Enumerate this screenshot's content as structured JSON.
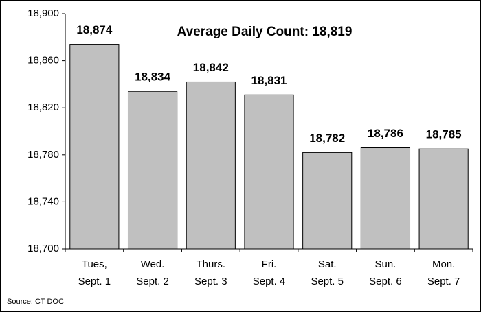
{
  "chart_data": {
    "type": "bar",
    "annotation": "Average Daily Count: 18,819",
    "source": "Source: CT DOC",
    "categories": [
      [
        "Tues,",
        "Sept. 1"
      ],
      [
        "Wed.",
        "Sept. 2"
      ],
      [
        "Thurs.",
        "Sept. 3"
      ],
      [
        "Fri.",
        "Sept. 4"
      ],
      [
        "Sat.",
        "Sept. 5"
      ],
      [
        "Sun.",
        "Sept. 6"
      ],
      [
        "Mon.",
        "Sept. 7"
      ]
    ],
    "values": [
      18874,
      18834,
      18842,
      18831,
      18782,
      18786,
      18785
    ],
    "value_labels": [
      "18,874",
      "18,834",
      "18,842",
      "18,831",
      "18,782",
      "18,786",
      "18,785"
    ],
    "color": "#c0c0c0",
    "ylim": [
      18700,
      18900
    ],
    "yticks": [
      {
        "value": 18700,
        "label": "18,700"
      },
      {
        "value": 18740,
        "label": "18,740"
      },
      {
        "value": 18780,
        "label": "18,780"
      },
      {
        "value": 18820,
        "label": "18,820"
      },
      {
        "value": 18860,
        "label": "18,860"
      },
      {
        "value": 18900,
        "label": "18,900"
      }
    ],
    "grid": false
  }
}
